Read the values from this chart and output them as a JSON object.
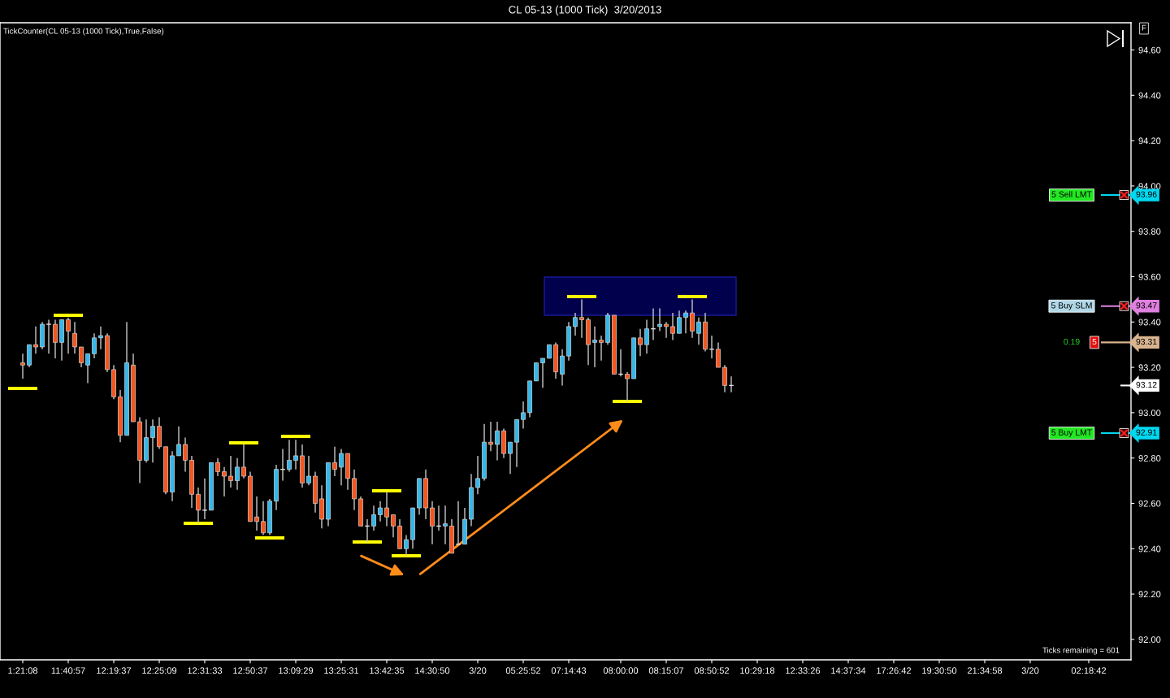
{
  "chart_data": {
    "type": "candlestick",
    "title": "CL 05-13 (1000 Tick)  3/20/2013",
    "categories": [
      null,
      null,
      null,
      "1:21:08",
      null,
      null,
      null,
      null,
      null,
      null,
      "11:40:57",
      null,
      null,
      null,
      null,
      null,
      null,
      "12:19:37",
      null,
      null,
      null,
      null,
      null,
      null,
      "12:25:09",
      null,
      null,
      null,
      null,
      null,
      null,
      "12:31:33",
      null,
      null,
      null,
      null,
      null,
      null,
      "12:50:37",
      null,
      null,
      null,
      null,
      null,
      null,
      "13:09:29",
      null,
      null,
      null,
      null,
      null,
      null,
      "13:25:31",
      null,
      null,
      null,
      null,
      null,
      null,
      "13:42:35",
      null,
      null,
      null,
      null,
      null,
      null,
      "14:30:50",
      null,
      null,
      null,
      null,
      null,
      null,
      "3/20",
      null,
      null,
      null,
      null,
      null,
      null,
      "05:25:52",
      null,
      null,
      null,
      null,
      null,
      null,
      "07:14:43",
      null,
      null,
      null,
      null,
      null,
      null,
      null,
      "08:00:00",
      null,
      null,
      null,
      null,
      null,
      null,
      "08:15:07",
      null,
      null,
      null,
      null,
      null,
      null,
      "08:50:52",
      null,
      null,
      null,
      null,
      null,
      null,
      "10:29:18",
      null,
      null,
      null,
      null,
      null,
      null,
      "12:33:26",
      null,
      null,
      null,
      null,
      null,
      null,
      "14:37:34",
      null,
      null,
      null,
      null,
      null,
      null,
      "17:26:42",
      null,
      null,
      null,
      null,
      null,
      null,
      "19:30:50",
      null,
      null,
      null,
      null,
      null,
      null,
      "21:34:58",
      null,
      null,
      null,
      null,
      null,
      null,
      "3/20",
      null,
      null,
      null,
      null,
      null,
      null,
      null,
      null,
      "02:18:42",
      null,
      null,
      null,
      null,
      null,
      null
    ],
    "series": [
      {
        "colors": [
          null,
          null,
          null,
          "#f5561f",
          "#35b7ea",
          "#f5561f",
          "#35b7ea",
          "#e0e0e0",
          "#f5561f",
          "#35b7ea",
          "#f5561f",
          "#f5561f",
          "#f5561f",
          "#35b7ea",
          "#35b7ea",
          "#35b7ea",
          "#f5561f",
          "#f5561f",
          "#f5561f",
          "#35b7ea",
          "#f5561f",
          "#f5561f",
          "#35b7ea",
          "#35b7ea",
          "#f5561f",
          "#f5561f",
          "#35b7ea",
          "#35b7ea",
          "#f5561f",
          "#f5561f",
          "#f5561f",
          "#e0e0e0",
          "#35b7ea",
          "#f5561f",
          "#f5561f",
          "#f5561f",
          "#35b7ea",
          "#f5561f",
          "#f5561f",
          "#f5561f",
          "#f5561f",
          "#35b7ea",
          "#35b7ea",
          "#e0e0e0",
          "#35b7ea",
          "#35b7ea",
          "#f5561f",
          "#35b7ea",
          "#f5561f",
          "#f5561f",
          "#35b7ea",
          "#f5561f",
          "#35b7ea",
          "#f5561f",
          "#f5561f",
          "#f5561f",
          "#e0e0e0",
          "#35b7ea",
          "#35b7ea",
          "#f5561f",
          "#f5561f",
          "#f5561f",
          "#35b7ea",
          "#35b7ea",
          "#35b7ea",
          "#f5561f",
          "#f5561f",
          "#e0e0e0",
          "#35b7ea",
          "#f5561f",
          "#e0e0e0",
          "#35b7ea",
          "#35b7ea",
          "#35b7ea",
          "#35b7ea",
          "#f5561f",
          "#35b7ea",
          "#f5561f",
          "#35b7ea",
          "#35b7ea",
          "#35b7ea",
          "#35b7ea",
          "#35b7ea",
          "#35b7ea",
          "#35b7ea",
          "#f5561f",
          "#35b7ea",
          "#35b7ea",
          "#35b7ea",
          "#f5561f",
          "#f5561f",
          "#35b7ea",
          "#f5561f",
          "#35b7ea",
          "#f5561f",
          "#e0e0e0",
          "#f5561f",
          "#35b7ea",
          "#f5561f",
          "#35b7ea",
          "#e0e0e0",
          "#35b7ea",
          "#f5561f",
          "#f5561f",
          "#35b7ea",
          "#35b7ea",
          "#f5561f",
          "#35b7ea",
          "#f5561f",
          "#e0e0e0",
          "#f5561f",
          "#f5561f",
          "#e0e0e0",
          null,
          null,
          null,
          null,
          null,
          null,
          null,
          null,
          null,
          null,
          null,
          null,
          null,
          null,
          null,
          null,
          null,
          null,
          null,
          null,
          null,
          null,
          null,
          null,
          null,
          null,
          null,
          null,
          null,
          null,
          null,
          null,
          null,
          null,
          null,
          null,
          null,
          null,
          null,
          null,
          null,
          null,
          null,
          null,
          null,
          null,
          null,
          null,
          null,
          null,
          null,
          null,
          null,
          null,
          null,
          null,
          null,
          null,
          null,
          null,
          null
        ],
        "ohlc": [
          null,
          null,
          null,
          [
            93.22,
            93.26,
            93.15,
            93.21
          ],
          [
            93.21,
            93.3,
            93.2,
            93.3
          ],
          [
            93.3,
            93.38,
            93.26,
            93.29
          ],
          [
            93.29,
            93.4,
            93.28,
            93.39
          ],
          [
            93.39,
            93.41,
            93.26,
            93.39
          ],
          [
            93.39,
            93.41,
            93.24,
            93.31
          ],
          [
            93.31,
            93.41,
            93.23,
            93.41
          ],
          [
            93.41,
            93.42,
            93.26,
            93.36
          ],
          [
            93.35,
            93.4,
            93.26,
            93.29
          ],
          [
            93.29,
            93.29,
            93.2,
            93.22
          ],
          [
            93.21,
            93.26,
            93.13,
            93.26
          ],
          [
            93.26,
            93.35,
            93.24,
            93.33
          ],
          [
            93.33,
            93.38,
            93.28,
            93.34
          ],
          [
            93.34,
            93.35,
            93.18,
            93.19
          ],
          [
            93.19,
            93.21,
            93.06,
            93.07
          ],
          [
            93.07,
            93.1,
            92.87,
            92.9
          ],
          [
            92.9,
            93.4,
            92.9,
            93.22
          ],
          [
            93.21,
            93.26,
            92.96,
            92.96
          ],
          [
            92.96,
            92.98,
            92.69,
            92.79
          ],
          [
            92.79,
            92.97,
            92.78,
            92.89
          ],
          [
            92.89,
            92.97,
            92.78,
            92.94
          ],
          [
            92.94,
            92.98,
            92.84,
            92.85
          ],
          [
            92.85,
            92.85,
            92.64,
            92.65
          ],
          [
            92.65,
            92.83,
            92.61,
            92.81
          ],
          [
            92.81,
            92.94,
            92.81,
            92.86
          ],
          [
            92.86,
            92.89,
            92.74,
            92.79
          ],
          [
            92.79,
            92.81,
            92.58,
            92.64
          ],
          [
            92.64,
            92.67,
            92.51,
            92.57
          ],
          [
            92.57,
            92.71,
            92.53,
            92.57
          ],
          [
            92.57,
            92.78,
            92.57,
            92.78
          ],
          [
            92.78,
            92.8,
            92.72,
            92.74
          ],
          [
            92.74,
            92.76,
            92.63,
            92.72
          ],
          [
            92.72,
            92.81,
            92.67,
            92.7
          ],
          [
            92.7,
            92.8,
            92.66,
            92.76
          ],
          [
            92.76,
            92.86,
            92.71,
            92.72
          ],
          [
            92.72,
            92.74,
            92.52,
            92.52
          ],
          [
            92.54,
            92.63,
            92.48,
            92.52
          ],
          [
            92.52,
            92.61,
            92.46,
            92.47
          ],
          [
            92.47,
            92.62,
            92.46,
            92.61
          ],
          [
            92.61,
            92.77,
            92.57,
            92.75
          ],
          [
            92.75,
            92.84,
            92.7,
            92.75
          ],
          [
            92.75,
            92.88,
            92.74,
            92.79
          ],
          [
            92.79,
            92.88,
            92.75,
            92.81
          ],
          [
            92.81,
            92.86,
            92.67,
            92.69
          ],
          [
            92.69,
            92.81,
            92.68,
            92.72
          ],
          [
            92.72,
            92.74,
            92.56,
            92.6
          ],
          [
            92.62,
            92.68,
            92.49,
            92.53
          ],
          [
            92.53,
            92.78,
            92.5,
            92.78
          ],
          [
            92.78,
            92.85,
            92.72,
            92.75
          ],
          [
            92.76,
            92.84,
            92.68,
            92.82
          ],
          [
            92.82,
            92.82,
            92.66,
            92.71
          ],
          [
            92.71,
            92.75,
            92.57,
            92.62
          ],
          [
            92.62,
            92.63,
            92.5,
            92.5
          ],
          [
            92.5,
            92.53,
            92.43,
            92.5
          ],
          [
            92.5,
            92.59,
            92.48,
            92.55
          ],
          [
            92.55,
            92.61,
            92.52,
            92.58
          ],
          [
            92.58,
            92.65,
            92.5,
            92.54
          ],
          [
            92.55,
            92.55,
            92.45,
            92.5
          ],
          [
            92.5,
            92.53,
            92.4,
            92.4
          ],
          [
            92.4,
            92.46,
            92.37,
            92.44
          ],
          [
            92.44,
            92.58,
            92.4,
            92.58
          ],
          [
            92.58,
            92.71,
            92.55,
            92.71
          ],
          [
            92.71,
            92.75,
            92.53,
            92.58
          ],
          [
            92.58,
            92.61,
            92.42,
            92.5
          ],
          [
            92.5,
            92.59,
            92.48,
            92.5
          ],
          [
            92.5,
            92.59,
            92.42,
            92.51
          ],
          [
            92.5,
            92.53,
            92.38,
            92.38
          ],
          [
            92.42,
            92.61,
            92.42,
            92.42
          ],
          [
            92.42,
            92.58,
            92.42,
            92.53
          ],
          [
            92.53,
            92.73,
            92.5,
            92.67
          ],
          [
            92.67,
            92.81,
            92.64,
            92.71
          ],
          [
            92.71,
            92.95,
            92.7,
            92.87
          ],
          [
            92.87,
            92.96,
            92.83,
            92.86
          ],
          [
            92.86,
            92.96,
            92.79,
            92.92
          ],
          [
            92.92,
            92.93,
            92.8,
            92.82
          ],
          [
            92.82,
            92.87,
            92.73,
            92.87
          ],
          [
            92.87,
            92.97,
            92.76,
            92.97
          ],
          [
            92.97,
            93.05,
            92.93,
            93.0
          ],
          [
            93.0,
            93.14,
            92.98,
            93.14
          ],
          [
            93.14,
            93.22,
            93.14,
            93.22
          ],
          [
            93.22,
            93.24,
            93.11,
            93.24
          ],
          [
            93.24,
            93.3,
            93.24,
            93.3
          ],
          [
            93.3,
            93.31,
            93.15,
            93.18
          ],
          [
            93.17,
            93.28,
            93.12,
            93.25
          ],
          [
            93.25,
            93.4,
            93.23,
            93.38
          ],
          [
            93.38,
            93.44,
            93.34,
            93.42
          ],
          [
            93.42,
            93.5,
            93.33,
            93.41
          ],
          [
            93.41,
            93.42,
            93.21,
            93.3
          ],
          [
            93.31,
            93.38,
            93.2,
            93.32
          ],
          [
            93.32,
            93.34,
            93.23,
            93.31
          ],
          [
            93.31,
            93.44,
            93.3,
            93.43
          ],
          [
            93.43,
            93.43,
            93.17,
            93.17
          ],
          [
            93.17,
            93.28,
            93.16,
            93.17
          ],
          [
            93.17,
            93.18,
            93.05,
            93.15
          ],
          [
            93.15,
            93.33,
            93.15,
            93.33
          ],
          [
            93.33,
            93.37,
            93.25,
            93.3
          ],
          [
            93.3,
            93.41,
            93.26,
            93.37
          ],
          [
            93.37,
            93.46,
            93.32,
            93.37
          ],
          [
            93.38,
            93.46,
            93.36,
            93.39
          ],
          [
            93.39,
            93.4,
            93.33,
            93.38
          ],
          [
            93.38,
            93.44,
            93.32,
            93.35
          ],
          [
            93.35,
            93.45,
            93.35,
            93.42
          ],
          [
            93.42,
            93.45,
            93.35,
            93.44
          ],
          [
            93.44,
            93.5,
            93.33,
            93.36
          ],
          [
            93.35,
            93.42,
            93.3,
            93.4
          ],
          [
            93.4,
            93.44,
            93.27,
            93.28
          ],
          [
            93.28,
            93.34,
            93.24,
            93.28
          ],
          [
            93.28,
            93.31,
            93.2,
            93.2
          ],
          [
            93.2,
            93.21,
            93.09,
            93.12
          ],
          [
            93.12,
            93.16,
            93.09,
            93.12
          ],
          null,
          null,
          null,
          null,
          null,
          null,
          null,
          null,
          null,
          null,
          null,
          null,
          null,
          null,
          null,
          null,
          null,
          null,
          null,
          null,
          null,
          null,
          null,
          null,
          null,
          null,
          null,
          null,
          null,
          null,
          null,
          null,
          null,
          null,
          null,
          null,
          null,
          null,
          null,
          null,
          null,
          null,
          null,
          null,
          null,
          null,
          null,
          null,
          null,
          null,
          null,
          null,
          null,
          null,
          null,
          null,
          null,
          null,
          null,
          null,
          null
        ]
      }
    ],
    "ylim": [
      91.91,
      94.72
    ],
    "yticks": [
      {
        "value": 92.0,
        "label": "92.00"
      },
      {
        "value": 92.2,
        "label": "92.20"
      },
      {
        "value": 92.4,
        "label": "92.40"
      },
      {
        "value": 92.6,
        "label": "92.60"
      },
      {
        "value": 92.8,
        "label": "92.80"
      },
      {
        "value": 93.0,
        "label": "93.00"
      },
      {
        "value": 93.2,
        "label": "93.20"
      },
      {
        "value": 93.4,
        "label": "93.40"
      },
      {
        "value": 93.6,
        "label": "93.60"
      },
      {
        "value": 93.8,
        "label": "93.80"
      },
      {
        "value": 94.0,
        "label": "94.00"
      },
      {
        "value": 94.2,
        "label": "94.20"
      },
      {
        "value": 94.4,
        "label": "94.40"
      },
      {
        "value": 94.6,
        "label": "94.60"
      }
    ],
    "ref_lines": [
      {
        "axis": "y",
        "value": 93.96,
        "label": "93.96",
        "color": "#00d8f0"
      },
      {
        "axis": "y",
        "value": 93.47,
        "label": "93.47",
        "color": "#e080e0"
      },
      {
        "axis": "y",
        "value": 93.31,
        "label": "93.31",
        "color": "#d9b48f"
      },
      {
        "axis": "y",
        "value": 93.12,
        "label": "93.12",
        "color": "#ffffff"
      },
      {
        "axis": "y",
        "value": 92.91,
        "label": "92.91",
        "color": "#00d8f0"
      }
    ],
    "annotations": [
      "TickCounter(CL 05-13 (1000 Tick),True,False)",
      "Ticks remaining = 601",
      "F",
      "5 Sell LMT",
      "5 Buy SLM",
      "0.19",
      "5",
      "5 Buy LMT"
    ]
  }
}
